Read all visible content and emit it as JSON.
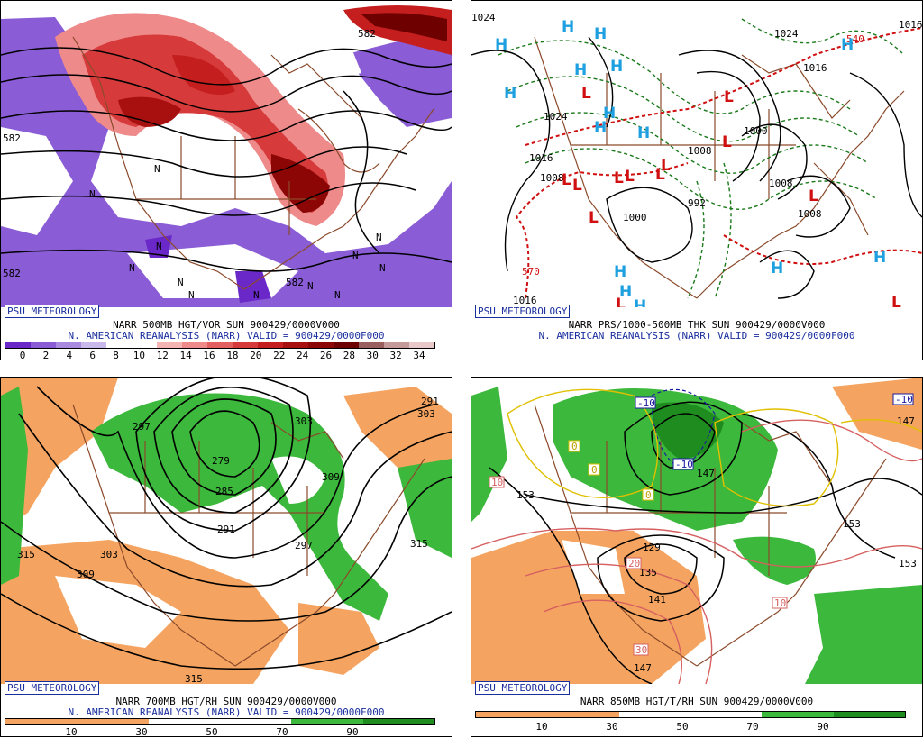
{
  "badge": "PSU METEOROLOGY",
  "panels": [
    {
      "title": "NARR 500MB HGT/VOR SUN 900429/0000V000",
      "subtitle": "N. AMERICAN REANALYSIS (NARR) VALID = 900429/0000F000",
      "colorbar": {
        "colors": [
          "#6a28c8",
          "#8a5cd6",
          "#a98ae0",
          "#c9b8ea",
          "#ffffff",
          "#ffffff",
          "#f4b4b4",
          "#ee8a8a",
          "#e36060",
          "#d63a3a",
          "#c41e1e",
          "#a81010",
          "#8c0606",
          "#6e0000",
          "#9a6060",
          "#c49a9a",
          "#e8c8c8"
        ],
        "ticks": [
          "0",
          "2",
          "4",
          "6",
          "8",
          "10",
          "12",
          "14",
          "16",
          "18",
          "20",
          "22",
          "24",
          "26",
          "28",
          "30",
          "32",
          "34"
        ]
      },
      "contour_labels": [
        "582",
        "582",
        "582",
        "582"
      ],
      "vort_labels": [
        "N",
        "N",
        "N",
        "N",
        "N",
        "N",
        "N",
        "N",
        "N",
        "N",
        "N",
        "N"
      ]
    },
    {
      "title": "NARR PRS/1000-500MB THK SUN 900429/0000V000",
      "subtitle": "N. AMERICAN REANALYSIS (NARR) VALID = 900429/0000F000",
      "isobar_labels": [
        "1024",
        "1024",
        "1024",
        "1016",
        "1016",
        "1008",
        "1000",
        "1000",
        "1008",
        "1008",
        "1016",
        "1016",
        "992",
        "1008"
      ],
      "thickness_labels": [
        "540",
        "570"
      ],
      "highs": [
        "H",
        "H",
        "H",
        "H",
        "H",
        "H",
        "H",
        "H",
        "H",
        "H",
        "H",
        "H",
        "H",
        "H",
        "H",
        "H"
      ],
      "lows": [
        "L",
        "L",
        "L",
        "L",
        "L",
        "L",
        "L",
        "L",
        "L",
        "L",
        "L",
        "L",
        "L",
        "L"
      ]
    },
    {
      "title": "NARR 700MB HGT/RH SUN 900429/0000V000",
      "subtitle": "N. AMERICAN REANALYSIS (NARR) VALID = 900429/0000F000",
      "colorbar": {
        "colors": [
          "#f4a460",
          "#f4a460",
          "#ffffff",
          "#ffffff",
          "#3cb83c",
          "#1e8c1e"
        ],
        "ticks": [
          "10",
          "30",
          "50",
          "70",
          "90"
        ]
      },
      "contour_labels": [
        "297",
        "303",
        "279",
        "285",
        "291",
        "297",
        "303",
        "309",
        "315",
        "315",
        "309",
        "303",
        "315",
        "291"
      ]
    },
    {
      "title": "NARR 850MB HGT/T/RH SUN 900429/0000V000",
      "subtitle": "",
      "colorbar": {
        "colors": [
          "#f4a460",
          "#f4a460",
          "#ffffff",
          "#ffffff",
          "#3cb83c",
          "#1e8c1e"
        ],
        "ticks": [
          "10",
          "30",
          "50",
          "70",
          "90"
        ]
      },
      "contour_labels": [
        "153",
        "153",
        "153",
        "147",
        "129",
        "135",
        "141",
        "147",
        "147"
      ],
      "temp_labels": [
        "-10",
        "-10",
        "-10",
        "0",
        "0",
        "0",
        "10",
        "10",
        "20",
        "30"
      ]
    }
  ],
  "colors": {
    "badge_text": "#1a2f9e",
    "coast": "#8b4a2b",
    "isobar": "#000000",
    "thickness_cold": "#1a7a1a",
    "thickness_warm": "#d01010",
    "high": "#1ea0e0",
    "low": "#d01010"
  }
}
